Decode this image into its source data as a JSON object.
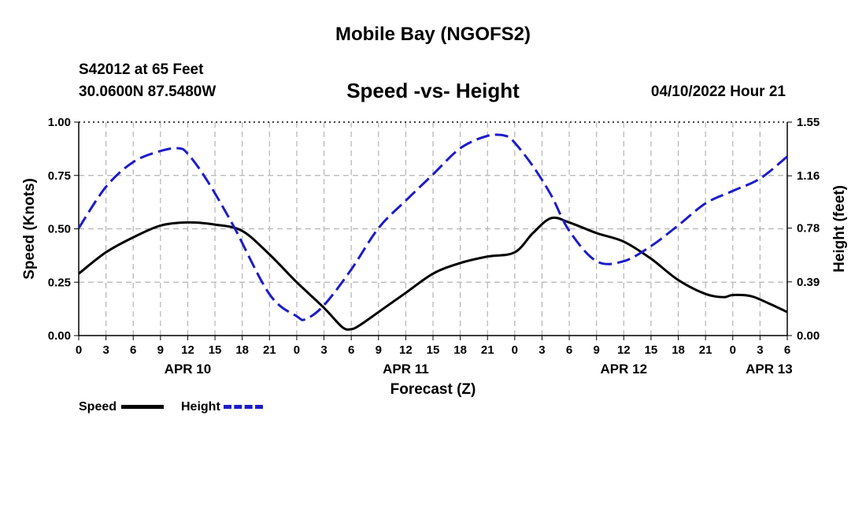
{
  "header": {
    "title": "Mobile Bay (NGOFS2)",
    "station": "S42012 at 65 Feet",
    "coords": "30.0600N  87.5480W",
    "timestamp": "04/10/2022 Hour 21",
    "footer_title": "Mobile Bay (NGOFS2)"
  },
  "chart_data": {
    "type": "line",
    "title": "Speed -vs- Height",
    "xlabel": "Forecast (Z)",
    "ylabel": "Speed (Knots)",
    "y2label": "Height (feet)",
    "x_unit": "hours since Apr 10 00Z",
    "xlim": [
      0,
      78
    ],
    "ylim": [
      0,
      1.0
    ],
    "y2lim": [
      0,
      1.55
    ],
    "x_ticks": [
      0,
      3,
      6,
      9,
      12,
      15,
      18,
      21,
      24,
      27,
      30,
      33,
      36,
      39,
      42,
      45,
      48,
      51,
      54,
      57,
      60,
      63,
      66,
      69,
      72,
      75,
      78
    ],
    "x_tick_labels": [
      "0",
      "3",
      "6",
      "9",
      "12",
      "15",
      "18",
      "21",
      "0",
      "3",
      "6",
      "9",
      "12",
      "15",
      "18",
      "21",
      "0",
      "3",
      "6",
      "9",
      "12",
      "15",
      "18",
      "21",
      "0",
      "3",
      "6"
    ],
    "date_labels": [
      {
        "x": 12,
        "label": "APR 10"
      },
      {
        "x": 36,
        "label": "APR 11"
      },
      {
        "x": 60,
        "label": "APR 12"
      },
      {
        "x": 76,
        "label": "APR 13"
      }
    ],
    "y_ticks": [
      0,
      0.25,
      0.5,
      0.75,
      1.0
    ],
    "y_tick_labels": [
      "0.00",
      "0.25",
      "0.50",
      "0.75",
      "1.00"
    ],
    "y2_ticks": [
      0,
      0.39,
      0.78,
      1.16,
      1.55
    ],
    "y2_tick_labels": [
      "0.00",
      "0.39",
      "0.78",
      "1.16",
      "1.55"
    ],
    "grid": true,
    "series": [
      {
        "name": "Speed",
        "axis": "left",
        "color": "#000000",
        "style": "solid",
        "x": [
          0,
          3,
          6,
          9,
          12,
          15,
          18,
          21,
          24,
          27,
          29,
          30,
          31,
          33,
          36,
          39,
          42,
          45,
          48,
          50,
          52,
          54,
          57,
          60,
          63,
          66,
          69,
          71,
          72,
          74,
          76,
          78
        ],
        "values": [
          0.29,
          0.39,
          0.46,
          0.515,
          0.53,
          0.52,
          0.49,
          0.38,
          0.25,
          0.13,
          0.04,
          0.03,
          0.05,
          0.11,
          0.2,
          0.29,
          0.34,
          0.37,
          0.39,
          0.48,
          0.55,
          0.53,
          0.48,
          0.44,
          0.36,
          0.26,
          0.195,
          0.18,
          0.19,
          0.185,
          0.15,
          0.11
        ]
      },
      {
        "name": "Height",
        "axis": "right",
        "color": "#1c1cc8",
        "style": "dashed",
        "x": [
          0,
          3,
          6,
          9,
          11,
          12,
          14,
          17,
          21,
          24,
          25,
          27,
          30,
          33,
          36,
          39,
          42,
          45,
          47,
          48,
          50,
          52,
          54,
          57,
          60,
          63,
          66,
          69,
          72,
          75,
          78
        ],
        "values": [
          0.78,
          1.08,
          1.26,
          1.34,
          1.36,
          1.32,
          1.14,
          0.8,
          0.3,
          0.14,
          0.12,
          0.22,
          0.48,
          0.78,
          0.98,
          1.17,
          1.36,
          1.45,
          1.45,
          1.4,
          1.23,
          1.02,
          0.76,
          0.54,
          0.54,
          0.65,
          0.8,
          0.96,
          1.05,
          1.14,
          1.3
        ]
      }
    ],
    "legend": "bottom-left"
  }
}
